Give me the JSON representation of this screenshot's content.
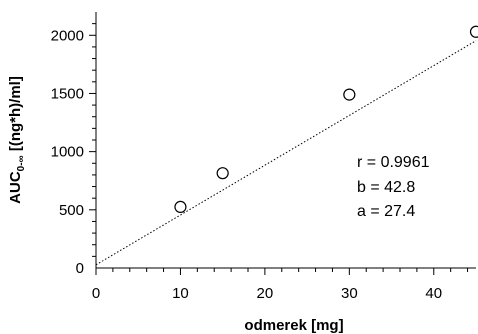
{
  "chart_data": {
    "type": "scatter",
    "title": "",
    "xlabel": "odmerek [mg]",
    "ylabel_prefix": "AUC",
    "ylabel_subscript": "0-∞",
    "ylabel_suffix": " [(ng*h)/ml]",
    "xlim": [
      0,
      45
    ],
    "ylim": [
      0,
      2200
    ],
    "x_ticks": [
      0,
      10,
      20,
      30,
      40
    ],
    "y_ticks": [
      0,
      500,
      1000,
      1500,
      2000
    ],
    "x_minor_step": 2,
    "y_minor_step": 100,
    "grid": false,
    "legend": "none",
    "series": [
      {
        "x": [
          10,
          15,
          30,
          45
        ],
        "y": [
          525,
          815,
          1490,
          2030
        ]
      }
    ],
    "regression": {
      "slope": 42.8,
      "intercept": 27.4,
      "style": "dotted"
    },
    "annotations": [
      "r = 0.9961",
      "b = 42.8",
      "a = 27.4"
    ]
  }
}
